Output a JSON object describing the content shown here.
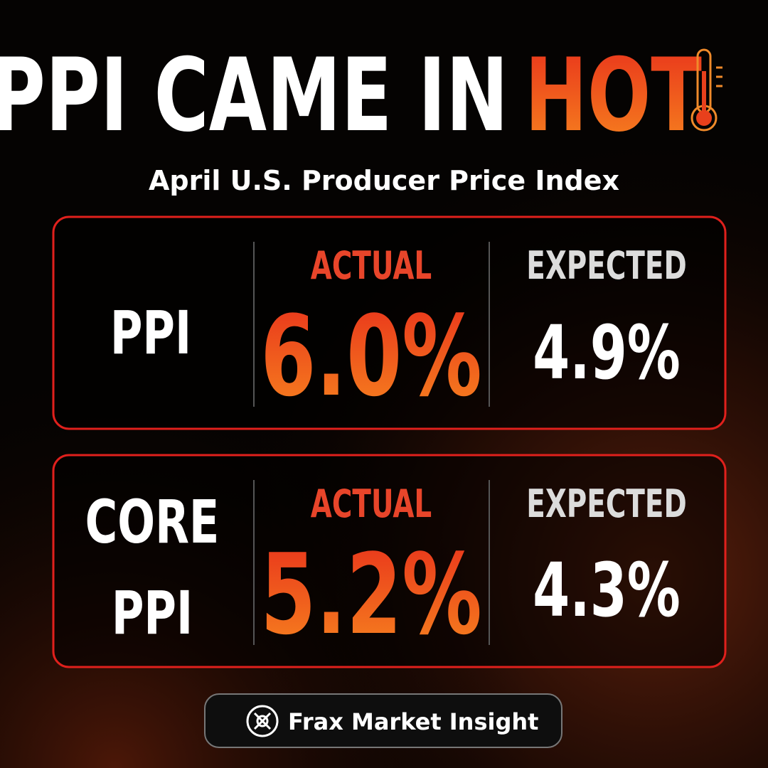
{
  "header": {
    "title": "PPI CAME IN",
    "highlight": "HOT",
    "subtitle": "April U.S. Producer Price Index"
  },
  "rows": [
    {
      "label_lines": [
        "PPI"
      ],
      "actual_label": "ACTUAL",
      "actual": "6.0%",
      "expected_label": "EXPECTED",
      "expected": "4.9%"
    },
    {
      "label_lines": [
        "CORE",
        "PPI"
      ],
      "actual_label": "ACTUAL",
      "actual": "5.2%",
      "expected_label": "EXPECTED",
      "expected": "4.3%"
    }
  ],
  "footer": {
    "brand": "Frax Market Insight"
  }
}
